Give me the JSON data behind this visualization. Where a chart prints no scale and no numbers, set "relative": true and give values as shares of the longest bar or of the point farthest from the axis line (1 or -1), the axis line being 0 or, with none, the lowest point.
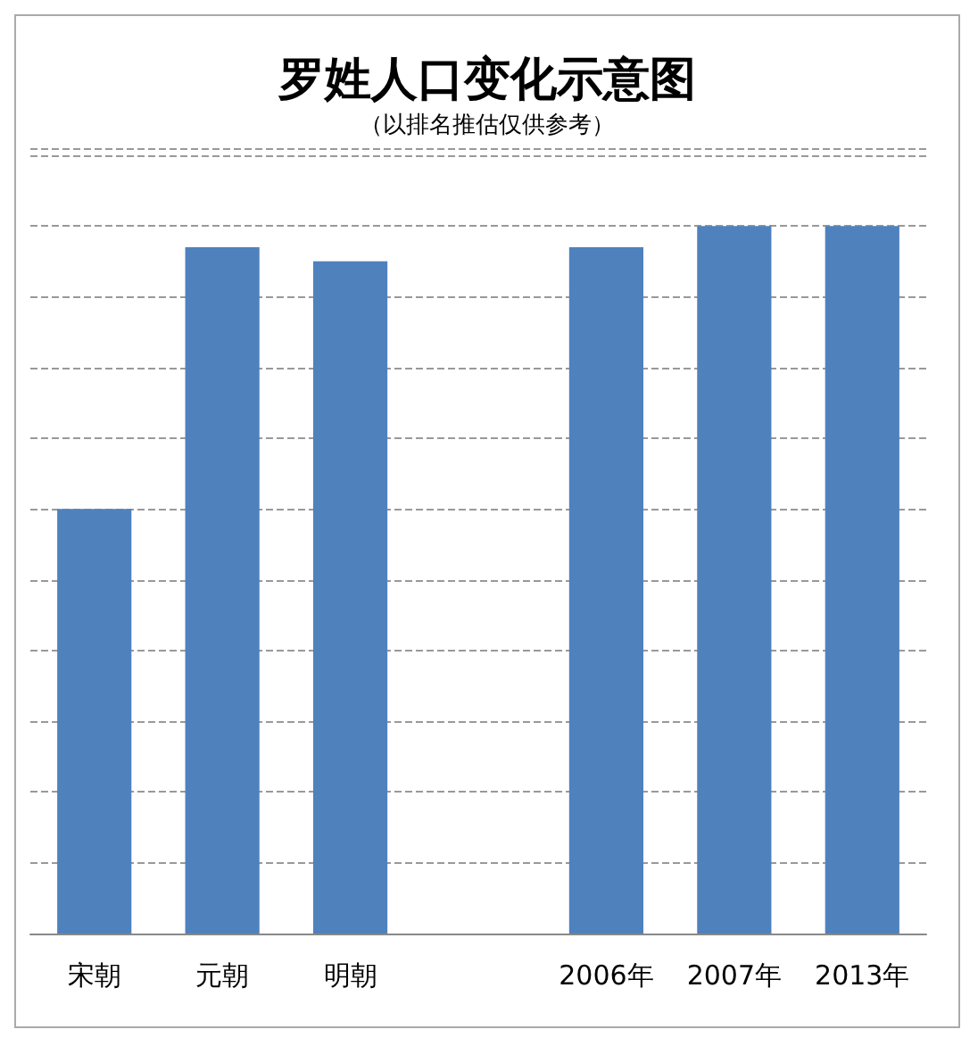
{
  "chart_data": {
    "type": "bar",
    "title": "罗姓人口变化示意图",
    "subtitle": "（以排名推估仅供参考）",
    "categories": [
      "宋朝",
      "元朝",
      "明朝",
      null,
      "2006年",
      "2007年",
      "2013年"
    ],
    "values": [
      0.6,
      0.97,
      0.95,
      null,
      0.97,
      1,
      1
    ],
    "color": "#4f81bd",
    "relative": true,
    "grid": "y"
  }
}
